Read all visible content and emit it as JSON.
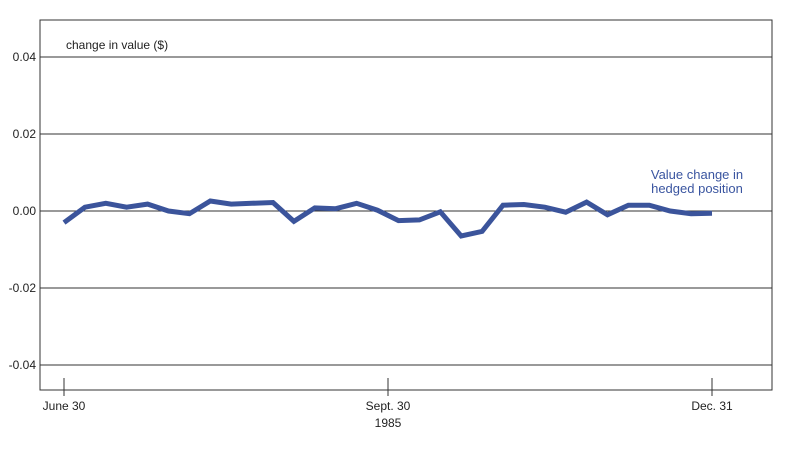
{
  "chart_data": {
    "type": "line",
    "title": "",
    "ylabel": "change in value ($)",
    "ylim": [
      -0.04,
      0.04
    ],
    "yticks": [
      0.04,
      0.02,
      0.0,
      -0.02,
      -0.04
    ],
    "ytick_labels": [
      "0.04",
      "0.02",
      "0.00",
      "-0.02",
      "-0.04"
    ],
    "xtick_labels": [
      "June 30",
      "Sept. 30",
      "Dec. 31"
    ],
    "xlabel": "1985",
    "grid": "horizontal",
    "series_label": [
      "Value change in",
      "hedged position"
    ],
    "series": [
      {
        "name": "Value change in hedged position",
        "color": "#3b549b",
        "values": [
          -0.003,
          0.001,
          0.002,
          0.001,
          0.0018,
          0.0,
          -0.0007,
          0.0026,
          0.0018,
          0.002,
          0.0022,
          -0.0027,
          0.0008,
          0.0006,
          0.002,
          0.0002,
          -0.0025,
          -0.0023,
          -0.0002,
          -0.0065,
          -0.0053,
          0.0015,
          0.0017,
          0.001,
          -0.0003,
          0.0023,
          -0.001,
          0.0015,
          0.0015,
          0.0,
          -0.0007,
          -0.0006
        ]
      }
    ]
  }
}
